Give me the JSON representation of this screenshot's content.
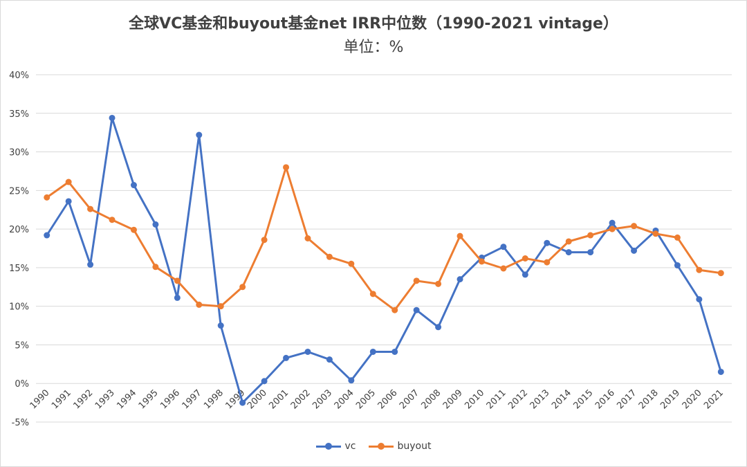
{
  "chart_data": {
    "type": "line",
    "title": "全球VC基金和buyout基金net IRR中位数（1990-2021 vintage）",
    "subtitle": "单位：%",
    "x": [
      "1990",
      "1991",
      "1992",
      "1993",
      "1994",
      "1995",
      "1996",
      "1997",
      "1998",
      "1999",
      "2000",
      "2001",
      "2002",
      "2003",
      "2004",
      "2005",
      "2006",
      "2007",
      "2008",
      "2009",
      "2010",
      "2011",
      "2012",
      "2013",
      "2014",
      "2015",
      "2016",
      "2017",
      "2018",
      "2019",
      "2020",
      "2021"
    ],
    "ylim": [
      -5,
      40
    ],
    "yticks": [
      "40%",
      "35%",
      "30%",
      "25%",
      "20%",
      "15%",
      "10%",
      "5%",
      "0%",
      "-5%"
    ],
    "ytick_values": [
      40,
      35,
      30,
      25,
      20,
      15,
      10,
      5,
      0,
      -5
    ],
    "grid": true,
    "legend_position": "bottom",
    "series": [
      {
        "name": "vc",
        "color": "#4472c4",
        "values": [
          19.2,
          23.6,
          15.4,
          34.4,
          25.7,
          20.6,
          11.1,
          32.2,
          7.5,
          -2.5,
          0.3,
          3.3,
          4.1,
          3.1,
          0.4,
          4.1,
          4.1,
          9.5,
          7.3,
          13.5,
          16.3,
          17.7,
          14.1,
          18.2,
          17.0,
          17.0,
          20.8,
          17.2,
          19.8,
          15.3,
          10.9,
          1.5
        ]
      },
      {
        "name": "buyout",
        "color": "#ed7d31",
        "values": [
          24.1,
          26.1,
          22.6,
          21.2,
          19.9,
          15.1,
          13.3,
          10.2,
          10.0,
          12.5,
          18.6,
          28.0,
          18.8,
          16.4,
          15.5,
          11.6,
          9.5,
          13.3,
          12.9,
          19.1,
          15.8,
          14.9,
          16.2,
          15.7,
          18.4,
          19.2,
          20.0,
          20.4,
          19.4,
          18.9,
          14.7,
          14.3
        ]
      }
    ]
  }
}
